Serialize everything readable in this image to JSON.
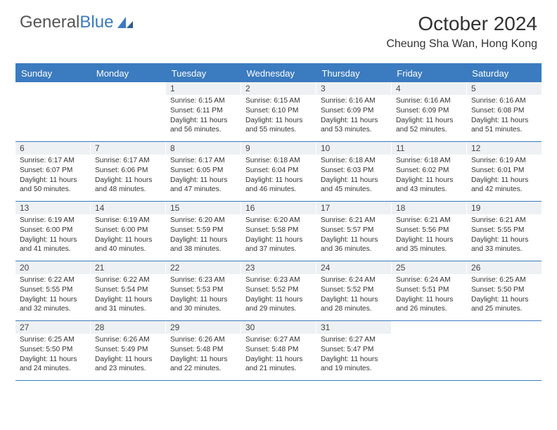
{
  "brand": {
    "part1": "General",
    "part2": "Blue"
  },
  "title": "October 2024",
  "location": "Cheung Sha Wan, Hong Kong",
  "colors": {
    "accent": "#3b7bbf",
    "daynum_bg": "#eef1f3",
    "text": "#333333",
    "background": "#ffffff"
  },
  "day_names": [
    "Sunday",
    "Monday",
    "Tuesday",
    "Wednesday",
    "Thursday",
    "Friday",
    "Saturday"
  ],
  "weeks": [
    [
      {
        "day": "",
        "sunrise": "",
        "sunset": "",
        "daylight": ""
      },
      {
        "day": "",
        "sunrise": "",
        "sunset": "",
        "daylight": ""
      },
      {
        "day": "1",
        "sunrise": "Sunrise: 6:15 AM",
        "sunset": "Sunset: 6:11 PM",
        "daylight": "Daylight: 11 hours and 56 minutes."
      },
      {
        "day": "2",
        "sunrise": "Sunrise: 6:15 AM",
        "sunset": "Sunset: 6:10 PM",
        "daylight": "Daylight: 11 hours and 55 minutes."
      },
      {
        "day": "3",
        "sunrise": "Sunrise: 6:16 AM",
        "sunset": "Sunset: 6:09 PM",
        "daylight": "Daylight: 11 hours and 53 minutes."
      },
      {
        "day": "4",
        "sunrise": "Sunrise: 6:16 AM",
        "sunset": "Sunset: 6:09 PM",
        "daylight": "Daylight: 11 hours and 52 minutes."
      },
      {
        "day": "5",
        "sunrise": "Sunrise: 6:16 AM",
        "sunset": "Sunset: 6:08 PM",
        "daylight": "Daylight: 11 hours and 51 minutes."
      }
    ],
    [
      {
        "day": "6",
        "sunrise": "Sunrise: 6:17 AM",
        "sunset": "Sunset: 6:07 PM",
        "daylight": "Daylight: 11 hours and 50 minutes."
      },
      {
        "day": "7",
        "sunrise": "Sunrise: 6:17 AM",
        "sunset": "Sunset: 6:06 PM",
        "daylight": "Daylight: 11 hours and 48 minutes."
      },
      {
        "day": "8",
        "sunrise": "Sunrise: 6:17 AM",
        "sunset": "Sunset: 6:05 PM",
        "daylight": "Daylight: 11 hours and 47 minutes."
      },
      {
        "day": "9",
        "sunrise": "Sunrise: 6:18 AM",
        "sunset": "Sunset: 6:04 PM",
        "daylight": "Daylight: 11 hours and 46 minutes."
      },
      {
        "day": "10",
        "sunrise": "Sunrise: 6:18 AM",
        "sunset": "Sunset: 6:03 PM",
        "daylight": "Daylight: 11 hours and 45 minutes."
      },
      {
        "day": "11",
        "sunrise": "Sunrise: 6:18 AM",
        "sunset": "Sunset: 6:02 PM",
        "daylight": "Daylight: 11 hours and 43 minutes."
      },
      {
        "day": "12",
        "sunrise": "Sunrise: 6:19 AM",
        "sunset": "Sunset: 6:01 PM",
        "daylight": "Daylight: 11 hours and 42 minutes."
      }
    ],
    [
      {
        "day": "13",
        "sunrise": "Sunrise: 6:19 AM",
        "sunset": "Sunset: 6:00 PM",
        "daylight": "Daylight: 11 hours and 41 minutes."
      },
      {
        "day": "14",
        "sunrise": "Sunrise: 6:19 AM",
        "sunset": "Sunset: 6:00 PM",
        "daylight": "Daylight: 11 hours and 40 minutes."
      },
      {
        "day": "15",
        "sunrise": "Sunrise: 6:20 AM",
        "sunset": "Sunset: 5:59 PM",
        "daylight": "Daylight: 11 hours and 38 minutes."
      },
      {
        "day": "16",
        "sunrise": "Sunrise: 6:20 AM",
        "sunset": "Sunset: 5:58 PM",
        "daylight": "Daylight: 11 hours and 37 minutes."
      },
      {
        "day": "17",
        "sunrise": "Sunrise: 6:21 AM",
        "sunset": "Sunset: 5:57 PM",
        "daylight": "Daylight: 11 hours and 36 minutes."
      },
      {
        "day": "18",
        "sunrise": "Sunrise: 6:21 AM",
        "sunset": "Sunset: 5:56 PM",
        "daylight": "Daylight: 11 hours and 35 minutes."
      },
      {
        "day": "19",
        "sunrise": "Sunrise: 6:21 AM",
        "sunset": "Sunset: 5:55 PM",
        "daylight": "Daylight: 11 hours and 33 minutes."
      }
    ],
    [
      {
        "day": "20",
        "sunrise": "Sunrise: 6:22 AM",
        "sunset": "Sunset: 5:55 PM",
        "daylight": "Daylight: 11 hours and 32 minutes."
      },
      {
        "day": "21",
        "sunrise": "Sunrise: 6:22 AM",
        "sunset": "Sunset: 5:54 PM",
        "daylight": "Daylight: 11 hours and 31 minutes."
      },
      {
        "day": "22",
        "sunrise": "Sunrise: 6:23 AM",
        "sunset": "Sunset: 5:53 PM",
        "daylight": "Daylight: 11 hours and 30 minutes."
      },
      {
        "day": "23",
        "sunrise": "Sunrise: 6:23 AM",
        "sunset": "Sunset: 5:52 PM",
        "daylight": "Daylight: 11 hours and 29 minutes."
      },
      {
        "day": "24",
        "sunrise": "Sunrise: 6:24 AM",
        "sunset": "Sunset: 5:52 PM",
        "daylight": "Daylight: 11 hours and 28 minutes."
      },
      {
        "day": "25",
        "sunrise": "Sunrise: 6:24 AM",
        "sunset": "Sunset: 5:51 PM",
        "daylight": "Daylight: 11 hours and 26 minutes."
      },
      {
        "day": "26",
        "sunrise": "Sunrise: 6:25 AM",
        "sunset": "Sunset: 5:50 PM",
        "daylight": "Daylight: 11 hours and 25 minutes."
      }
    ],
    [
      {
        "day": "27",
        "sunrise": "Sunrise: 6:25 AM",
        "sunset": "Sunset: 5:50 PM",
        "daylight": "Daylight: 11 hours and 24 minutes."
      },
      {
        "day": "28",
        "sunrise": "Sunrise: 6:26 AM",
        "sunset": "Sunset: 5:49 PM",
        "daylight": "Daylight: 11 hours and 23 minutes."
      },
      {
        "day": "29",
        "sunrise": "Sunrise: 6:26 AM",
        "sunset": "Sunset: 5:48 PM",
        "daylight": "Daylight: 11 hours and 22 minutes."
      },
      {
        "day": "30",
        "sunrise": "Sunrise: 6:27 AM",
        "sunset": "Sunset: 5:48 PM",
        "daylight": "Daylight: 11 hours and 21 minutes."
      },
      {
        "day": "31",
        "sunrise": "Sunrise: 6:27 AM",
        "sunset": "Sunset: 5:47 PM",
        "daylight": "Daylight: 11 hours and 19 minutes."
      },
      {
        "day": "",
        "sunrise": "",
        "sunset": "",
        "daylight": ""
      },
      {
        "day": "",
        "sunrise": "",
        "sunset": "",
        "daylight": ""
      }
    ]
  ]
}
